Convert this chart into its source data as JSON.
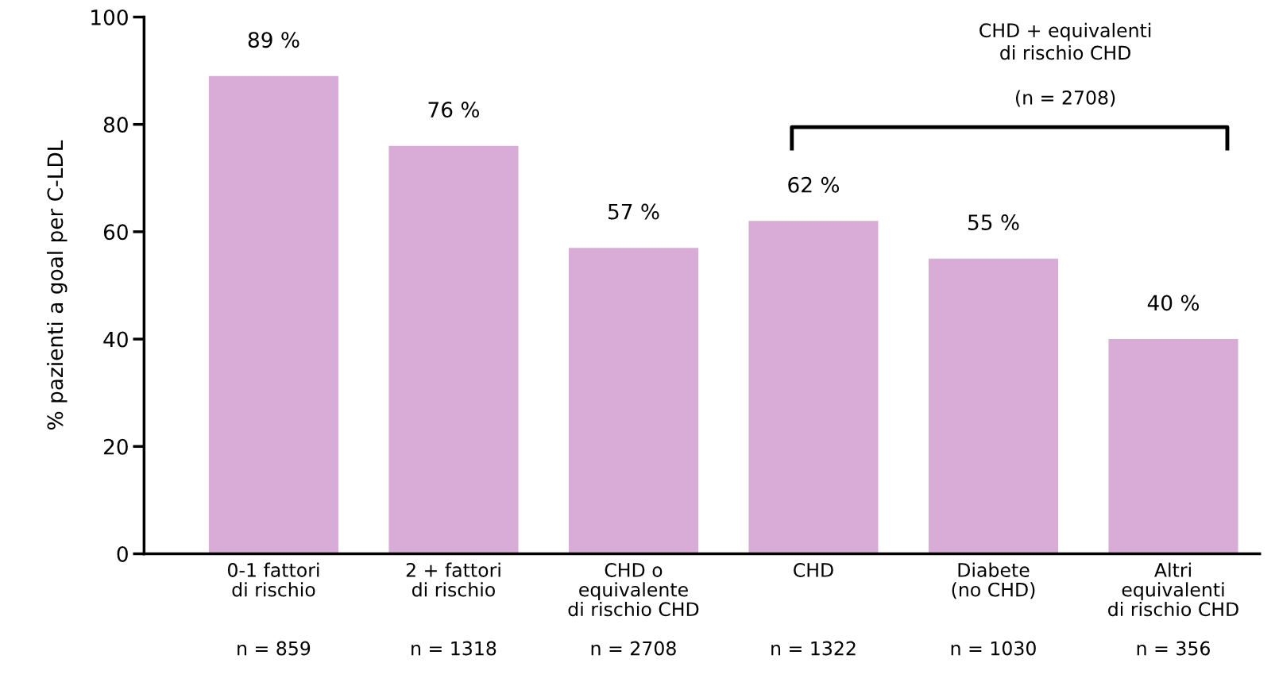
{
  "chart_data": {
    "type": "bar",
    "categories": [
      "0-1 fattori\ndi rischio\n\n\nn = 859",
      "2 + fattori\ndi rischio\n\n\nn = 1318",
      "CHD o\nequivalente\ndi rischio CHD\n\nn = 2708",
      "CHD\n\n\n\nn = 1322",
      "Diabete\n(no CHD)\n\n\nn = 1030",
      "Altri\nequivalenti\ndi rischio CHD\n\nn = 356"
    ],
    "values": [
      89,
      76,
      57,
      62,
      55,
      40
    ],
    "value_labels": [
      "89 %",
      "76 %",
      "57 %",
      "62 %",
      "55 %",
      "40 %"
    ],
    "color": "#d8acd6",
    "ylabel": "% pazienti a goal per C-LDL",
    "ylim": [
      0,
      100
    ],
    "yticks": [
      0,
      20,
      40,
      60,
      80,
      100
    ],
    "annotations": [
      "CHD + equivalenti\ndi rischio CHD\n\n(n = 2708)"
    ],
    "grid": false,
    "legend": false
  }
}
